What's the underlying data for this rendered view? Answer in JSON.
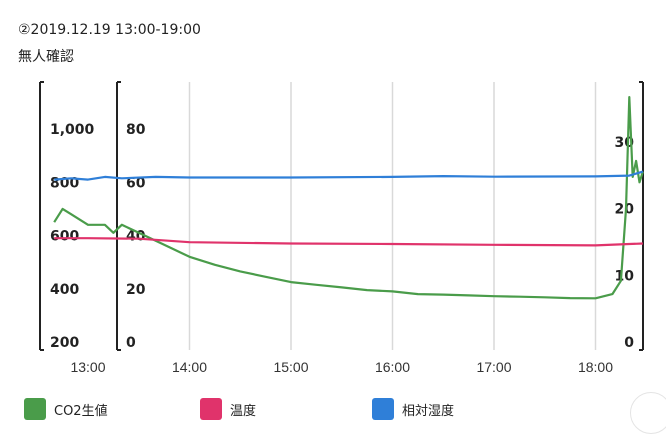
{
  "header": {
    "title": "②2019.12.19 13:00-19:00",
    "subtitle": "無人確認"
  },
  "colors": {
    "co2": "#4a9c4a",
    "temp": "#e0336b",
    "humidity": "#2f7fd8",
    "grid": "#d9d9d9",
    "axis": "#222222"
  },
  "chart_data": {
    "type": "line",
    "x_ticks": [
      "13:00",
      "14:00",
      "15:00",
      "16:00",
      "17:00",
      "18:00"
    ],
    "axes": [
      {
        "id": "co2",
        "range": [
          200,
          1200
        ],
        "ticks": [
          "200",
          "400",
          "600",
          "800",
          "1,000"
        ]
      },
      {
        "id": "temp",
        "range": [
          0,
          100
        ],
        "ticks": [
          "0",
          "20",
          "40",
          "60",
          "80"
        ]
      },
      {
        "id": "right",
        "range": [
          0,
          40
        ],
        "ticks": [
          "0",
          "10",
          "20",
          "30"
        ]
      }
    ],
    "series": [
      {
        "name": "CO2生値",
        "axis": "co2",
        "color": "#4a9c4a",
        "x": [
          "12:40",
          "12:45",
          "12:50",
          "13:00",
          "13:10",
          "13:15",
          "13:20",
          "13:30",
          "13:40",
          "13:50",
          "14:00",
          "14:15",
          "14:30",
          "14:45",
          "15:00",
          "15:15",
          "15:30",
          "15:45",
          "16:00",
          "16:15",
          "16:30",
          "16:45",
          "17:00",
          "17:15",
          "17:30",
          "17:45",
          "18:00",
          "18:10",
          "18:15",
          "18:18",
          "18:20",
          "18:22",
          "18:24",
          "18:26",
          "18:28"
        ],
        "values": [
          650,
          700,
          680,
          640,
          640,
          610,
          640,
          610,
          580,
          550,
          520,
          490,
          465,
          445,
          425,
          415,
          405,
          395,
          390,
          380,
          378,
          375,
          372,
          370,
          368,
          365,
          364,
          380,
          430,
          700,
          1120,
          820,
          880,
          800,
          840
        ]
      },
      {
        "name": "温度",
        "axis": "temp",
        "color": "#e0336b",
        "x": [
          "12:40",
          "13:00",
          "13:30",
          "14:00",
          "15:00",
          "16:00",
          "17:00",
          "18:00",
          "18:20",
          "18:28"
        ],
        "values": [
          39,
          39,
          38.8,
          37.5,
          37,
          36.8,
          36.5,
          36.3,
          36.8,
          37
        ]
      },
      {
        "name": "相対湿度",
        "axis": "temp",
        "color": "#2f7fd8",
        "x": [
          "12:40",
          "12:50",
          "13:00",
          "13:10",
          "13:20",
          "13:40",
          "14:00",
          "15:00",
          "16:00",
          "16:30",
          "17:00",
          "18:00",
          "18:20",
          "18:28"
        ],
        "values": [
          61,
          61.5,
          61,
          62,
          61.5,
          62,
          61.8,
          61.8,
          62,
          62.3,
          62.1,
          62.2,
          62.5,
          64
        ]
      }
    ]
  }
}
